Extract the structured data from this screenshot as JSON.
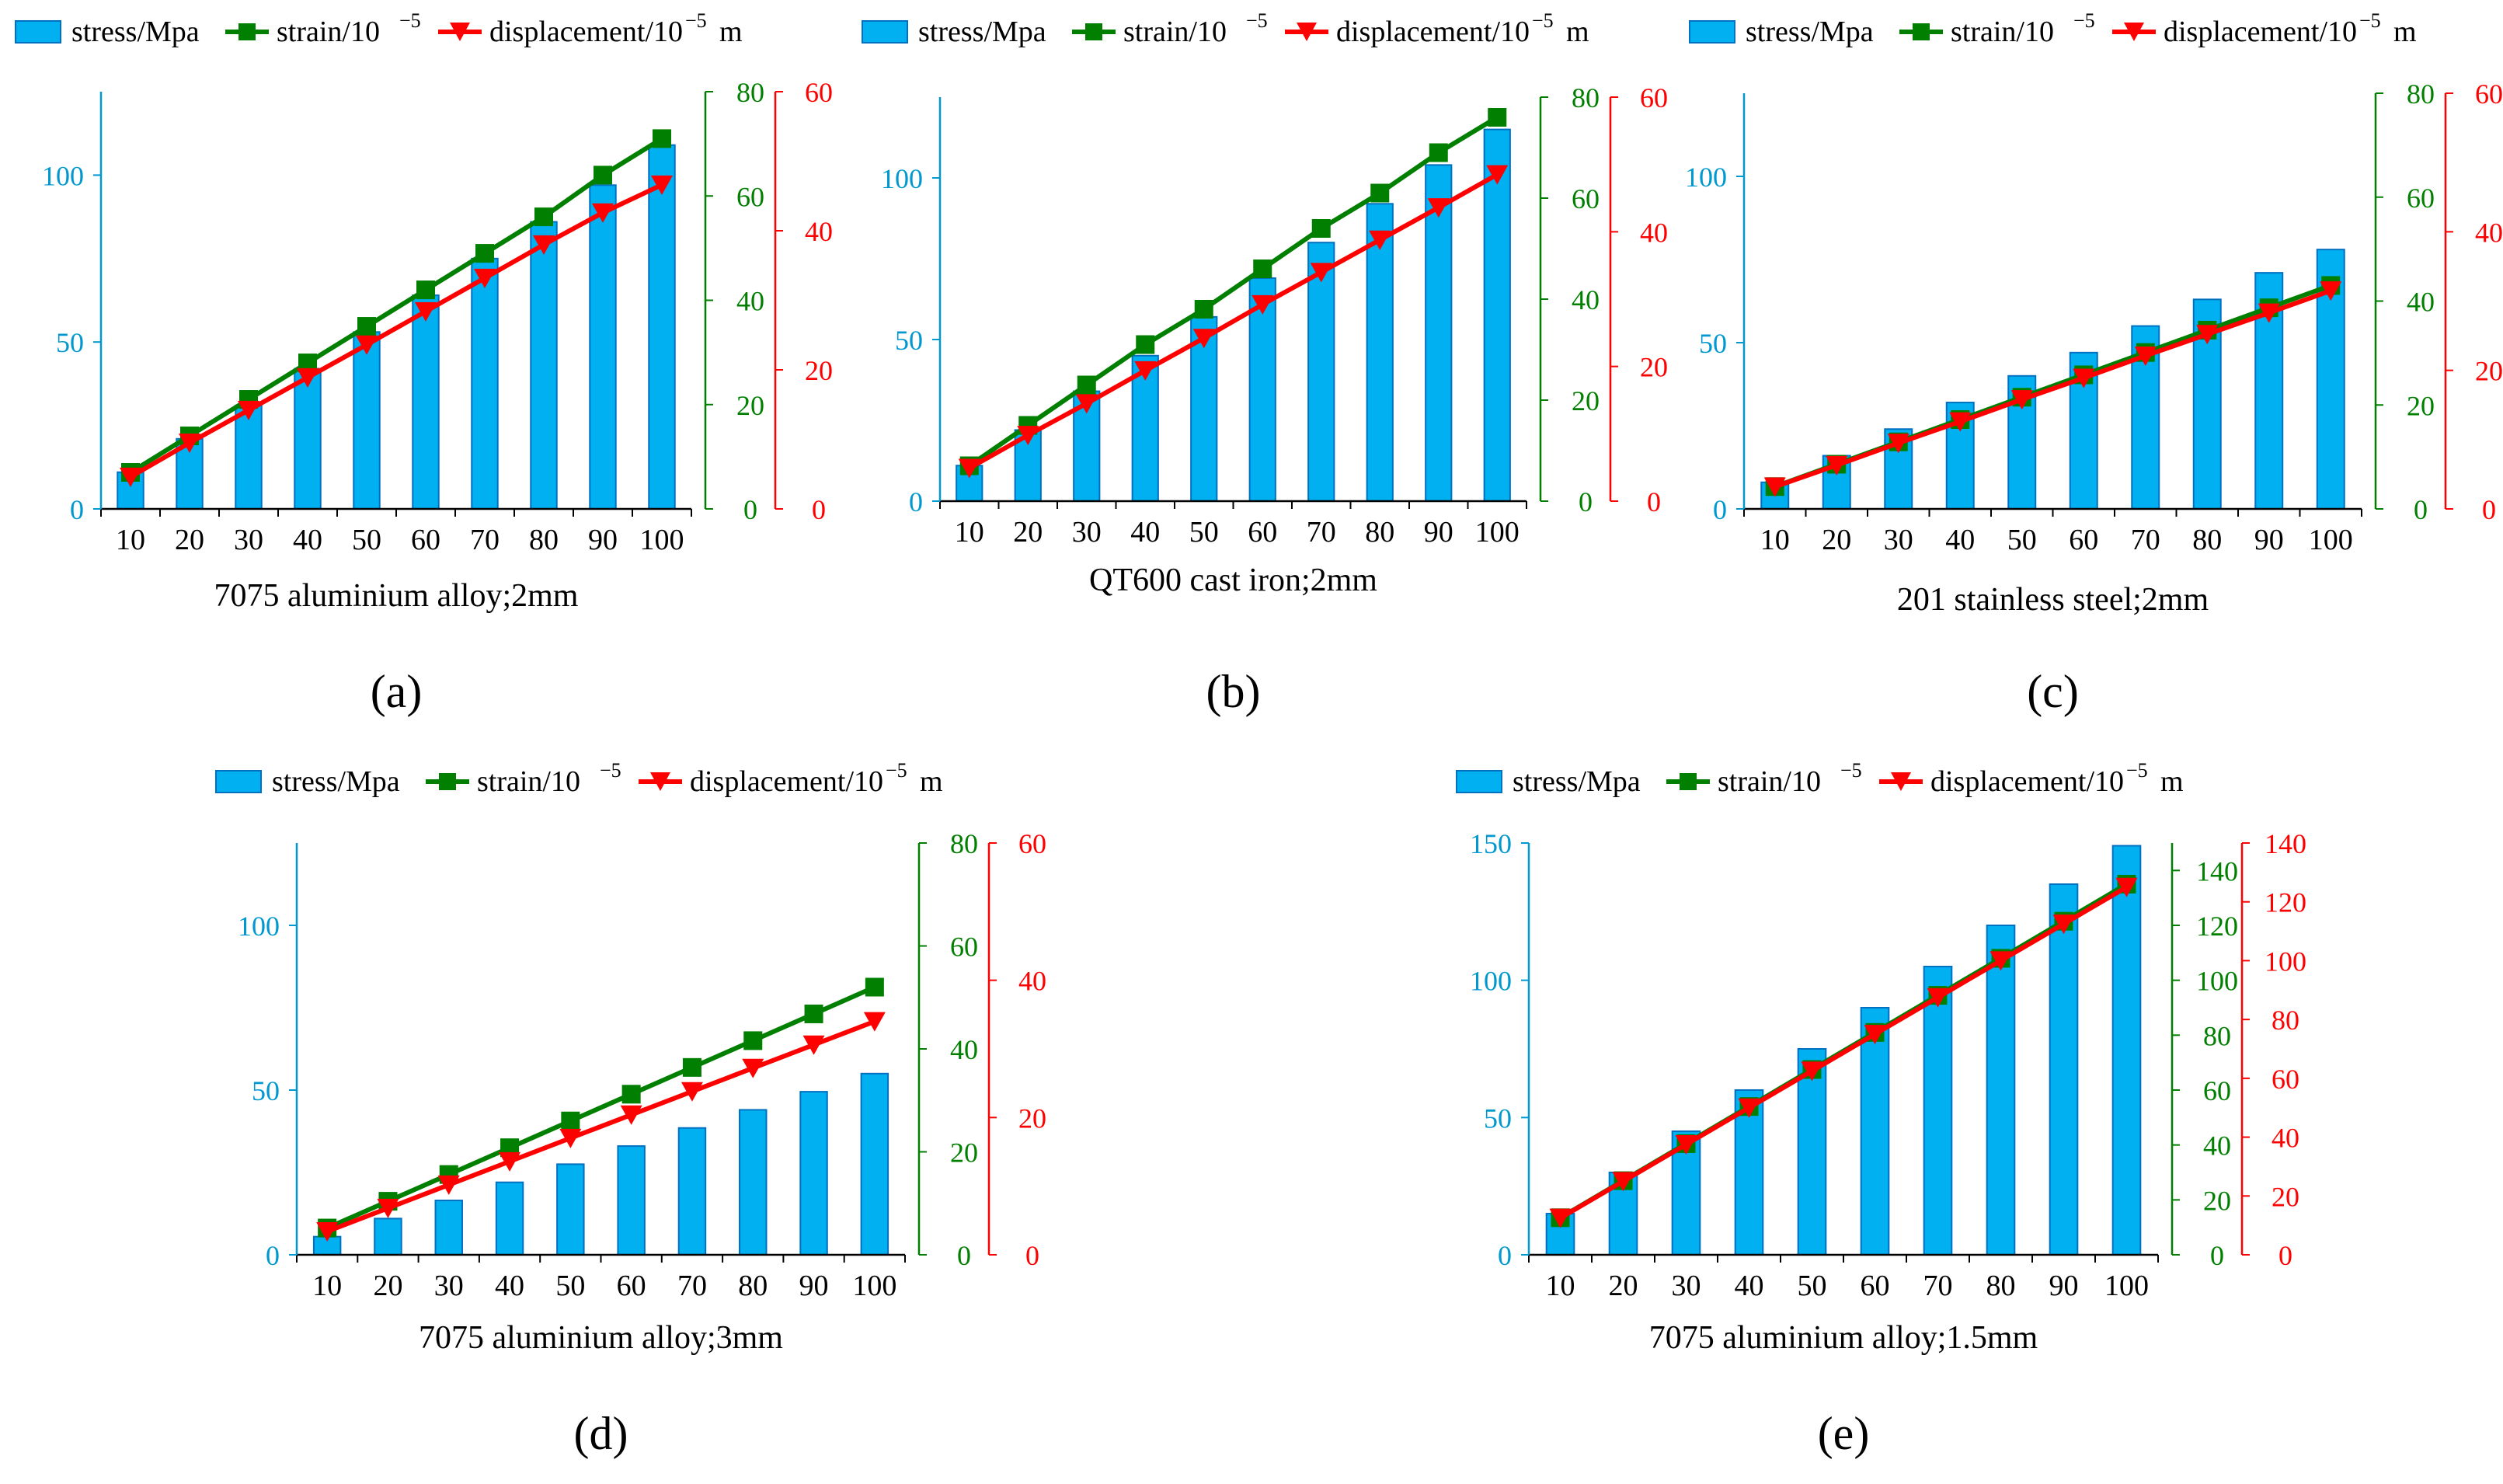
{
  "colors": {
    "stress": "#00b0f0",
    "stress_border": "#0070c0",
    "strain": "#007f00",
    "displacement": "#ff0000",
    "stress_axis": "#0098d0",
    "text": "#000000"
  },
  "legend": {
    "stress": "stress/Mpa",
    "strain_base": "strain/10",
    "strain_exp": "−5",
    "disp_base": "displacement/10",
    "disp_exp": "−5",
    "disp_unit": "m"
  },
  "chart_data": [
    {
      "type": "bar+line",
      "panel_label": "(a)",
      "caption": "7075 aluminium alloy;2mm",
      "categories": [
        "10",
        "20",
        "30",
        "40",
        "50",
        "60",
        "70",
        "80",
        "90",
        "100"
      ],
      "y_left": {
        "name": "stress/Mpa",
        "ylim": [
          0,
          125
        ],
        "ticks": [
          0,
          50,
          100
        ]
      },
      "y_right1": {
        "name": "strain/10^-5",
        "ylim": [
          0,
          80
        ],
        "ticks": [
          0,
          20,
          40,
          60,
          80
        ]
      },
      "y_right2": {
        "name": "displacement/10^-5 m",
        "ylim": [
          0,
          60
        ],
        "ticks": [
          0,
          20,
          40,
          60
        ]
      },
      "series": [
        {
          "name": "stress/Mpa",
          "axis": "left",
          "kind": "bar",
          "values": [
            11,
            21,
            31,
            42,
            53,
            64,
            75,
            86,
            97,
            109
          ]
        },
        {
          "name": "strain/10^-5",
          "axis": "right1",
          "kind": "line-square",
          "values": [
            7,
            14,
            21,
            28,
            35,
            42,
            49,
            56,
            64,
            71
          ]
        },
        {
          "name": "displacement/10^-5 m",
          "axis": "right2",
          "kind": "line-triangle",
          "values": [
            4.6,
            9.5,
            14.2,
            18.9,
            23.6,
            28.4,
            33.2,
            38.0,
            42.6,
            46.6
          ]
        }
      ]
    },
    {
      "type": "bar+line",
      "panel_label": "(b)",
      "caption": "QT600 cast iron;2mm",
      "categories": [
        "10",
        "20",
        "30",
        "40",
        "50",
        "60",
        "70",
        "80",
        "90",
        "100"
      ],
      "y_left": {
        "name": "stress/Mpa",
        "ylim": [
          0,
          125
        ],
        "ticks": [
          0,
          50,
          100
        ]
      },
      "y_right1": {
        "name": "strain/10^-5",
        "ylim": [
          0,
          80
        ],
        "ticks": [
          0,
          20,
          40,
          60,
          80
        ]
      },
      "y_right2": {
        "name": "displacement/10^-5 m",
        "ylim": [
          0,
          60
        ],
        "ticks": [
          0,
          20,
          40,
          60
        ]
      },
      "series": [
        {
          "name": "stress/Mpa",
          "axis": "left",
          "kind": "bar",
          "values": [
            11,
            22,
            34,
            45,
            57,
            69,
            80,
            92,
            104,
            115
          ]
        },
        {
          "name": "strain/10^-5",
          "axis": "right1",
          "kind": "line-square",
          "values": [
            7,
            15,
            23,
            31,
            38,
            46,
            54,
            61,
            69,
            76
          ]
        },
        {
          "name": "displacement/10^-5 m",
          "axis": "right2",
          "kind": "line-triangle",
          "values": [
            4.9,
            9.8,
            14.5,
            19.4,
            24.2,
            29.2,
            34.0,
            38.8,
            43.6,
            48.5
          ]
        }
      ]
    },
    {
      "type": "bar+line",
      "panel_label": "(c)",
      "caption": "201 stainless steel;2mm",
      "categories": [
        "10",
        "20",
        "30",
        "40",
        "50",
        "60",
        "70",
        "80",
        "90",
        "100"
      ],
      "y_left": {
        "name": "stress/Mpa",
        "ylim": [
          0,
          125
        ],
        "ticks": [
          0,
          50,
          100
        ]
      },
      "y_right1": {
        "name": "strain/10^-5",
        "ylim": [
          0,
          80
        ],
        "ticks": [
          0,
          20,
          40,
          60,
          80
        ]
      },
      "y_right2": {
        "name": "displacement/10^-5 m",
        "ylim": [
          0,
          60
        ],
        "ticks": [
          0,
          20,
          40,
          60
        ]
      },
      "series": [
        {
          "name": "stress/Mpa",
          "axis": "left",
          "kind": "bar",
          "values": [
            8,
            16,
            24,
            32,
            40,
            47,
            55,
            63,
            71,
            78
          ]
        },
        {
          "name": "strain/10^-5",
          "axis": "right1",
          "kind": "line-square",
          "values": [
            4.3,
            8.6,
            12.9,
            17.2,
            21.5,
            25.8,
            30.1,
            34.4,
            38.7,
            43
          ]
        },
        {
          "name": "displacement/10^-5 m",
          "axis": "right2",
          "kind": "line-triangle",
          "values": [
            3.2,
            6.3,
            9.5,
            12.6,
            15.8,
            18.9,
            22.1,
            25.2,
            28.3,
            31.5
          ]
        }
      ]
    },
    {
      "type": "bar+line",
      "panel_label": "(d)",
      "caption": "7075 aluminium alloy;3mm",
      "categories": [
        "10",
        "20",
        "30",
        "40",
        "50",
        "60",
        "70",
        "80",
        "90",
        "100"
      ],
      "y_left": {
        "name": "stress/Mpa",
        "ylim": [
          0,
          125
        ],
        "ticks": [
          0,
          50,
          100
        ]
      },
      "y_right1": {
        "name": "strain/10^-5",
        "ylim": [
          0,
          80
        ],
        "ticks": [
          0,
          20,
          40,
          60,
          80
        ]
      },
      "y_right2": {
        "name": "displacement/10^-5 m",
        "ylim": [
          0,
          60
        ],
        "ticks": [
          0,
          20,
          40,
          60
        ]
      },
      "series": [
        {
          "name": "stress/Mpa",
          "axis": "left",
          "kind": "bar",
          "values": [
            5.5,
            11,
            16.5,
            22,
            27.5,
            33,
            38.5,
            44,
            49.5,
            55
          ]
        },
        {
          "name": "strain/10^-5",
          "axis": "right1",
          "kind": "line-square",
          "values": [
            5.2,
            10.4,
            15.6,
            20.8,
            26,
            31.2,
            36.4,
            41.6,
            46.8,
            52
          ]
        },
        {
          "name": "displacement/10^-5 m",
          "axis": "right2",
          "kind": "line-triangle",
          "values": [
            3.4,
            6.8,
            10.2,
            13.6,
            17,
            20.4,
            23.8,
            27.2,
            30.6,
            34
          ]
        }
      ]
    },
    {
      "type": "bar+line",
      "panel_label": "(e)",
      "caption": "7075 aluminium alloy;1.5mm",
      "categories": [
        "10",
        "20",
        "30",
        "40",
        "50",
        "60",
        "70",
        "80",
        "90",
        "100"
      ],
      "y_left": {
        "name": "stress/Mpa",
        "ylim": [
          0,
          150
        ],
        "ticks": [
          0,
          50,
          100,
          150
        ]
      },
      "y_right1": {
        "name": "strain/10^-5",
        "ylim": [
          0,
          150
        ],
        "ticks": [
          0,
          20,
          40,
          60,
          80,
          100,
          120,
          140
        ]
      },
      "y_right2": {
        "name": "displacement/10^-5 m",
        "ylim": [
          0,
          140
        ],
        "ticks": [
          0,
          20,
          40,
          60,
          80,
          100,
          120,
          140
        ]
      },
      "series": [
        {
          "name": "stress/Mpa",
          "axis": "left",
          "kind": "bar",
          "values": [
            15,
            30,
            45,
            60,
            75,
            90,
            105,
            120,
            135,
            149
          ]
        },
        {
          "name": "strain/10^-5",
          "axis": "right1",
          "kind": "line-square",
          "values": [
            13.5,
            27,
            40.5,
            54,
            67.5,
            81,
            94.5,
            108,
            121.5,
            135
          ]
        },
        {
          "name": "displacement/10^-5 m",
          "axis": "right2",
          "kind": "line-triangle",
          "values": [
            12.5,
            25,
            37.5,
            50,
            62.5,
            75,
            87.5,
            100,
            112.5,
            125
          ]
        }
      ]
    }
  ]
}
